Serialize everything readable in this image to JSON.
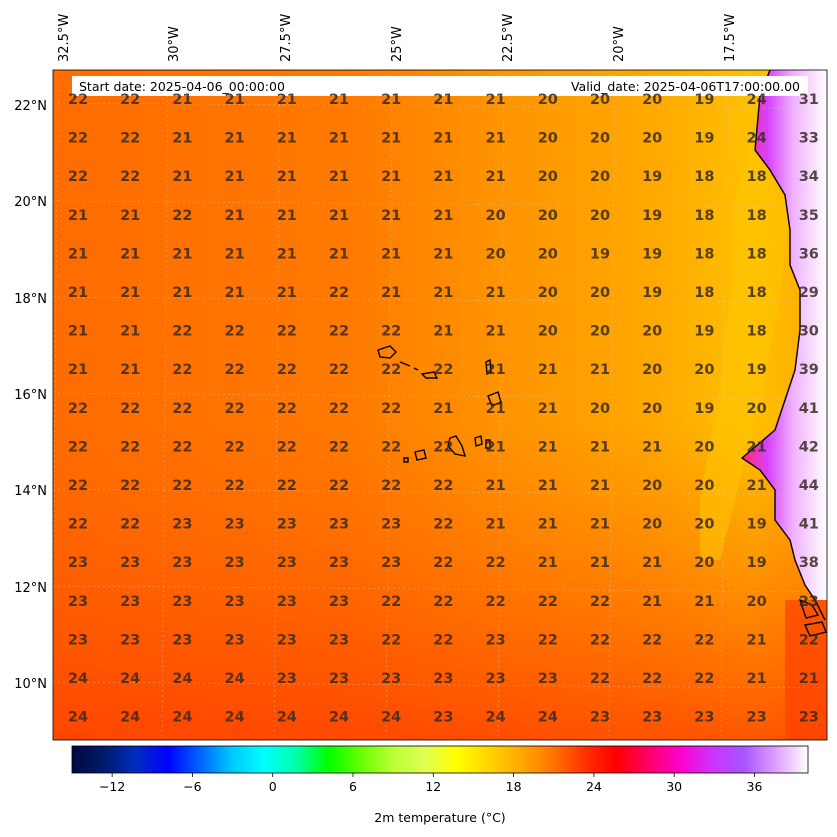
{
  "map": {
    "variable_label": "2m temperature ($^\\circ$C)",
    "variable_label_display": "2m temperature (°C)",
    "start_date": "Start date: 2025-04-06_00:00:00",
    "valid_date": "Valid_date: 2025-04-06T17:00:00.00",
    "lon_labels": [
      "32.5°W",
      "30°W",
      "27.5°W",
      "25°W",
      "22.5°W",
      "20°W",
      "17.5°W"
    ],
    "lat_labels": [
      "22°N",
      "20°N",
      "18°N",
      "16°N",
      "14°N",
      "12°N",
      "10°N"
    ],
    "colorbar": {
      "ticks": [
        "−12",
        "−6",
        "0",
        "6",
        "12",
        "18",
        "24",
        "30",
        "36"
      ],
      "tick_values": [
        -12,
        -6,
        0,
        6,
        12,
        18,
        24,
        30,
        36
      ],
      "range": [
        -15,
        40
      ],
      "colors": [
        "#000a40",
        "#001a6b",
        "#002dbf",
        "#0000ff",
        "#0064ff",
        "#00c8ff",
        "#00ffff",
        "#00ffaa",
        "#00ff00",
        "#66ff00",
        "#bbff33",
        "#ddff55",
        "#ffff00",
        "#ffd700",
        "#ffaa00",
        "#ff7700",
        "#ff3300",
        "#ff0000",
        "#ff0066",
        "#ff00cc",
        "#cc33ff",
        "#a855ff",
        "#e0a0ff",
        "#ffffff"
      ]
    },
    "grid_values": [
      [
        22,
        22,
        21,
        21,
        21,
        21,
        21,
        21,
        21,
        20,
        20,
        20,
        19,
        24,
        31
      ],
      [
        22,
        22,
        21,
        21,
        21,
        21,
        21,
        21,
        21,
        20,
        20,
        20,
        19,
        24,
        33
      ],
      [
        22,
        22,
        21,
        21,
        21,
        21,
        21,
        21,
        21,
        20,
        20,
        19,
        18,
        18,
        34
      ],
      [
        21,
        21,
        22,
        21,
        21,
        21,
        21,
        21,
        20,
        20,
        20,
        19,
        18,
        18,
        35
      ],
      [
        21,
        21,
        21,
        21,
        21,
        21,
        21,
        21,
        20,
        20,
        19,
        19,
        18,
        18,
        36
      ],
      [
        21,
        21,
        21,
        21,
        21,
        22,
        21,
        21,
        21,
        20,
        20,
        19,
        18,
        18,
        29
      ],
      [
        21,
        21,
        22,
        22,
        22,
        22,
        22,
        21,
        21,
        20,
        20,
        20,
        19,
        18,
        30
      ],
      [
        21,
        21,
        22,
        22,
        22,
        22,
        22,
        22,
        21,
        21,
        21,
        20,
        20,
        19,
        39
      ],
      [
        22,
        22,
        22,
        22,
        22,
        22,
        22,
        21,
        21,
        21,
        20,
        20,
        19,
        20,
        41
      ],
      [
        22,
        22,
        22,
        22,
        22,
        22,
        22,
        22,
        21,
        21,
        21,
        21,
        20,
        21,
        42
      ],
      [
        22,
        22,
        22,
        22,
        22,
        22,
        22,
        22,
        21,
        21,
        21,
        20,
        20,
        21,
        44
      ],
      [
        22,
        22,
        23,
        23,
        23,
        23,
        23,
        22,
        21,
        21,
        21,
        20,
        20,
        19,
        41
      ],
      [
        23,
        23,
        23,
        23,
        23,
        23,
        23,
        22,
        22,
        21,
        21,
        21,
        20,
        19,
        38
      ],
      [
        23,
        23,
        23,
        23,
        23,
        23,
        22,
        22,
        22,
        22,
        22,
        21,
        21,
        20,
        23
      ],
      [
        23,
        23,
        23,
        23,
        23,
        23,
        22,
        22,
        23,
        22,
        22,
        22,
        22,
        21,
        22
      ],
      [
        24,
        24,
        24,
        24,
        23,
        23,
        23,
        23,
        23,
        23,
        22,
        22,
        22,
        21,
        21
      ],
      [
        24,
        24,
        24,
        24,
        24,
        24,
        24,
        23,
        24,
        24,
        23,
        23,
        23,
        23,
        23
      ]
    ]
  }
}
